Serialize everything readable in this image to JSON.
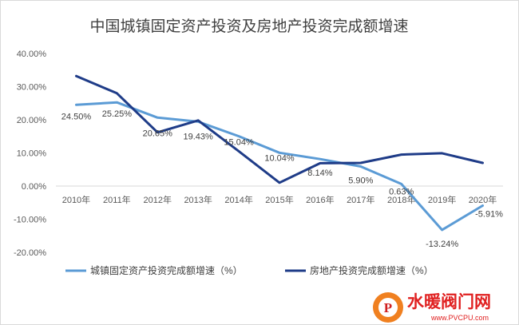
{
  "chart_data": {
    "type": "line",
    "title": "中国城镇固定资产投资及房地产投资完成额增速",
    "categories": [
      "2010年",
      "2011年",
      "2012年",
      "2013年",
      "2014年",
      "2015年",
      "2016年",
      "2017年",
      "2018年",
      "2019年",
      "2020年"
    ],
    "y_ticks": [
      "40.00%",
      "30.00%",
      "20.00%",
      "10.00%",
      "0.00%",
      "-10.00%",
      "-20.00%"
    ],
    "ylim": [
      -20,
      40
    ],
    "grid": false,
    "legend_position": "bottom",
    "series": [
      {
        "name": "城镇固定资产投资完成额增速（%）",
        "color": "#5b9bd5",
        "values": [
          24.5,
          25.25,
          20.65,
          19.43,
          15.04,
          10.04,
          8.14,
          5.9,
          0.63,
          -13.24,
          -5.91
        ],
        "labels": [
          "24.50%",
          "25.25%",
          "20.65%",
          "19.43%",
          "15.04%",
          "10.04%",
          "8.14%",
          "5.90%",
          "0.63%",
          "-13.24%",
          "-5.91%"
        ]
      },
      {
        "name": "房地产投资完成额增速（%）",
        "color": "#1f3c88",
        "values": [
          33.2,
          28.0,
          16.2,
          19.8,
          10.5,
          1.0,
          6.9,
          7.0,
          9.5,
          9.9,
          7.0
        ]
      }
    ]
  },
  "watermark": {
    "brand_cn": "水暖阀门网",
    "brand_url": "www.PVCPU.com",
    "logo_letter": "P"
  }
}
